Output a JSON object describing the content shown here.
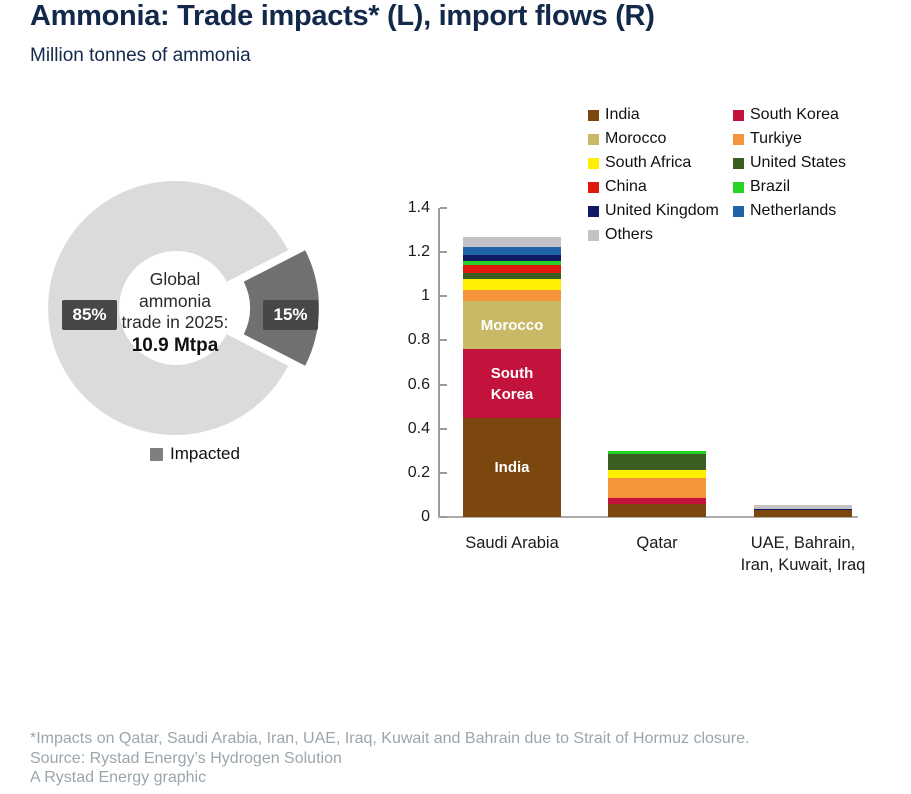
{
  "header": {
    "title": "Ammonia: Trade impacts* (L), import flows (R)",
    "subtitle": "Million tonnes of ammonia"
  },
  "donut": {
    "impacted_pct": 15,
    "rest_pct": 85,
    "label_major": "85%",
    "label_minor": "15%",
    "center_lines": [
      "Global",
      "ammonia",
      "trade in 2025:"
    ],
    "center_value": "10.9 Mtpa",
    "legend_label": "Impacted",
    "colors": {
      "ring": "#DBDBDB",
      "slice": "#707070",
      "label_bg": "#474747",
      "legend_swatch": "#7F7F7F"
    }
  },
  "chart_data": {
    "type": "bar",
    "stacked": true,
    "ylabel": "Million tonnes of ammonia",
    "ylim": [
      0,
      1.4
    ],
    "yticks": [
      0,
      0.2,
      0.4,
      0.6,
      0.8,
      1,
      1.2,
      1.4
    ],
    "grid": false,
    "legend_position": "top-right",
    "categories": [
      "Saudi Arabia",
      "Qatar",
      "UAE, Bahrain,|Iran, Kuwait, Iraq"
    ],
    "series": [
      {
        "name": "India",
        "color": "#7B470F",
        "values": [
          0.45,
          0.06,
          0.03
        ],
        "bar_label": "India"
      },
      {
        "name": "South Korea",
        "color": "#C3123B",
        "values": [
          0.31,
          0.025,
          0
        ],
        "bar_label": "South Korea"
      },
      {
        "name": "Morocco",
        "color": "#C9B967",
        "values": [
          0.22,
          0,
          0
        ],
        "bar_label": "Morocco"
      },
      {
        "name": "Turkiye",
        "color": "#F6943C",
        "values": [
          0.05,
          0.09,
          0
        ],
        "bar_label": ""
      },
      {
        "name": "South Africa",
        "color": "#FFEF00",
        "values": [
          0.05,
          0.04,
          0
        ],
        "bar_label": ""
      },
      {
        "name": "United States",
        "color": "#3A5E1F",
        "values": [
          0.025,
          0.07,
          0
        ],
        "bar_label": ""
      },
      {
        "name": "China",
        "color": "#E0190E",
        "values": [
          0.035,
          0,
          0
        ],
        "bar_label": ""
      },
      {
        "name": "Brazil",
        "color": "#24D324",
        "values": [
          0.02,
          0.015,
          0
        ],
        "bar_label": ""
      },
      {
        "name": "United Kingdom",
        "color": "#0E1A63",
        "values": [
          0.025,
          0,
          0.008
        ],
        "bar_label": ""
      },
      {
        "name": "Netherlands",
        "color": "#1F63A8",
        "values": [
          0.04,
          0,
          0
        ],
        "bar_label": ""
      },
      {
        "name": "Others",
        "color": "#C3C3C7",
        "values": [
          0.045,
          0,
          0.015
        ],
        "bar_label": ""
      }
    ]
  },
  "footer": {
    "lines": [
      "*Impacts on Qatar, Saudi Arabia, Iran, UAE, Iraq, Kuwait and Bahrain due to Strait of Hormuz closure.",
      "Source: Rystad Energy’s Hydrogen Solution",
      "A Rystad Energy graphic"
    ]
  }
}
